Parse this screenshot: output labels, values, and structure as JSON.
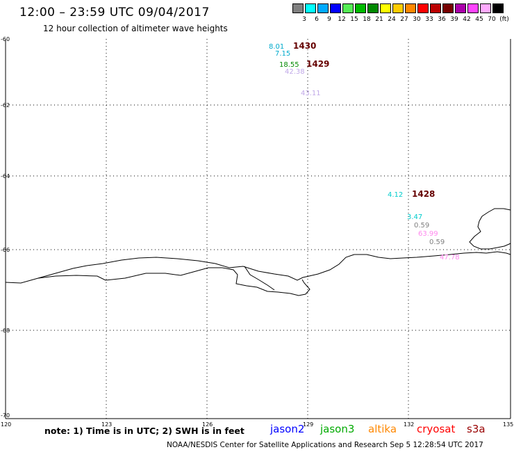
{
  "header": {
    "title": "12:00 – 23:59 UTC 09/04/2017",
    "subtitle": "12 hour collection of altimeter wave heights"
  },
  "color_scale": {
    "unit_label": "(ft)",
    "entries": [
      {
        "label": "3",
        "color": "#808080"
      },
      {
        "label": "6",
        "color": "#00ffff"
      },
      {
        "label": "9",
        "color": "#00aaff"
      },
      {
        "label": "12",
        "color": "#0000ff"
      },
      {
        "label": "15",
        "color": "#55ee55"
      },
      {
        "label": "18",
        "color": "#00bb00"
      },
      {
        "label": "21",
        "color": "#008800"
      },
      {
        "label": "24",
        "color": "#ffff00"
      },
      {
        "label": "27",
        "color": "#ffcc00"
      },
      {
        "label": "30",
        "color": "#ff8800"
      },
      {
        "label": "33",
        "color": "#ff0000"
      },
      {
        "label": "36",
        "color": "#bb0000"
      },
      {
        "label": "39",
        "color": "#770000"
      },
      {
        "label": "42",
        "color": "#aa00aa"
      },
      {
        "label": "45",
        "color": "#ff44ff"
      },
      {
        "label": "70",
        "color": "#ffaaff"
      },
      {
        "label": "",
        "color": "#000000"
      }
    ]
  },
  "map": {
    "lat_labels": [
      "-60",
      "-62",
      "-64",
      "-66",
      "-68",
      "-70"
    ],
    "lon_labels": [
      "120",
      "123",
      "126",
      "129",
      "132",
      "135"
    ],
    "pass_labels": [
      {
        "text": "1430",
        "color": "#660000"
      },
      {
        "text": "1429",
        "color": "#660000"
      },
      {
        "text": "1428",
        "color": "#660000"
      }
    ],
    "wave_readings": [
      {
        "text": "8.01",
        "color": "#00aacc"
      },
      {
        "text": "7.15",
        "color": "#00aacc"
      },
      {
        "text": "18.55",
        "color": "#008800"
      },
      {
        "text": "42.38",
        "color": "#c0a8e8"
      },
      {
        "text": "43.11",
        "color": "#c0a8e8"
      },
      {
        "text": "4.12",
        "color": "#00cccc"
      },
      {
        "text": "3.47",
        "color": "#00cccc"
      },
      {
        "text": "0.59",
        "color": "#808080"
      },
      {
        "text": "63.99",
        "color": "#ff88ee"
      },
      {
        "text": "0.59",
        "color": "#808080"
      },
      {
        "text": "47.78",
        "color": "#ff88ee"
      }
    ]
  },
  "legend": {
    "note": "note: 1) Time is in UTC; 2) SWH is in feet",
    "satellites": [
      {
        "name": "jason2",
        "color": "#0000ff"
      },
      {
        "name": "jason3",
        "color": "#00aa00"
      },
      {
        "name": "altika",
        "color": "#ff8800"
      },
      {
        "name": "cryosat",
        "color": "#ff0000"
      },
      {
        "name": "s3a",
        "color": "#990000"
      }
    ]
  },
  "footer": {
    "credit": "NOAA/NESDIS Center for Satellite Applications and Research   Sep  5 12:28:54 UTC 2017"
  }
}
